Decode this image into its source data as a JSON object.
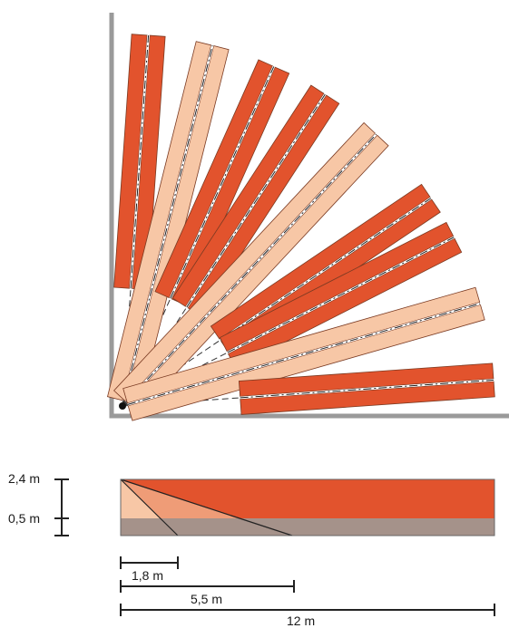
{
  "colors": {
    "dark_zone": "#e2532d",
    "mid_zone": "#ef9c77",
    "light_zone": "#f7c7a6",
    "ground_band": "#a5928a",
    "wall": "#9a9a9a",
    "line": "#222222"
  },
  "fan": {
    "beams": [
      {
        "angle_deg": 86,
        "tone": "dark"
      },
      {
        "angle_deg": 76,
        "tone": "light"
      },
      {
        "angle_deg": 66,
        "tone": "dark"
      },
      {
        "angle_deg": 57,
        "tone": "dark"
      },
      {
        "angle_deg": 47,
        "tone": "light"
      },
      {
        "angle_deg": 34,
        "tone": "dark"
      },
      {
        "angle_deg": 27,
        "tone": "dark"
      },
      {
        "angle_deg": 16,
        "tone": "light"
      },
      {
        "angle_deg": 4,
        "tone": "dark"
      }
    ]
  },
  "side_view": {
    "height_labels": {
      "top": "2,4 m",
      "low": "0,5 m"
    }
  },
  "dimensions": {
    "d1": "1,8 m",
    "d2": "5,5 m",
    "d3": "12 m"
  }
}
